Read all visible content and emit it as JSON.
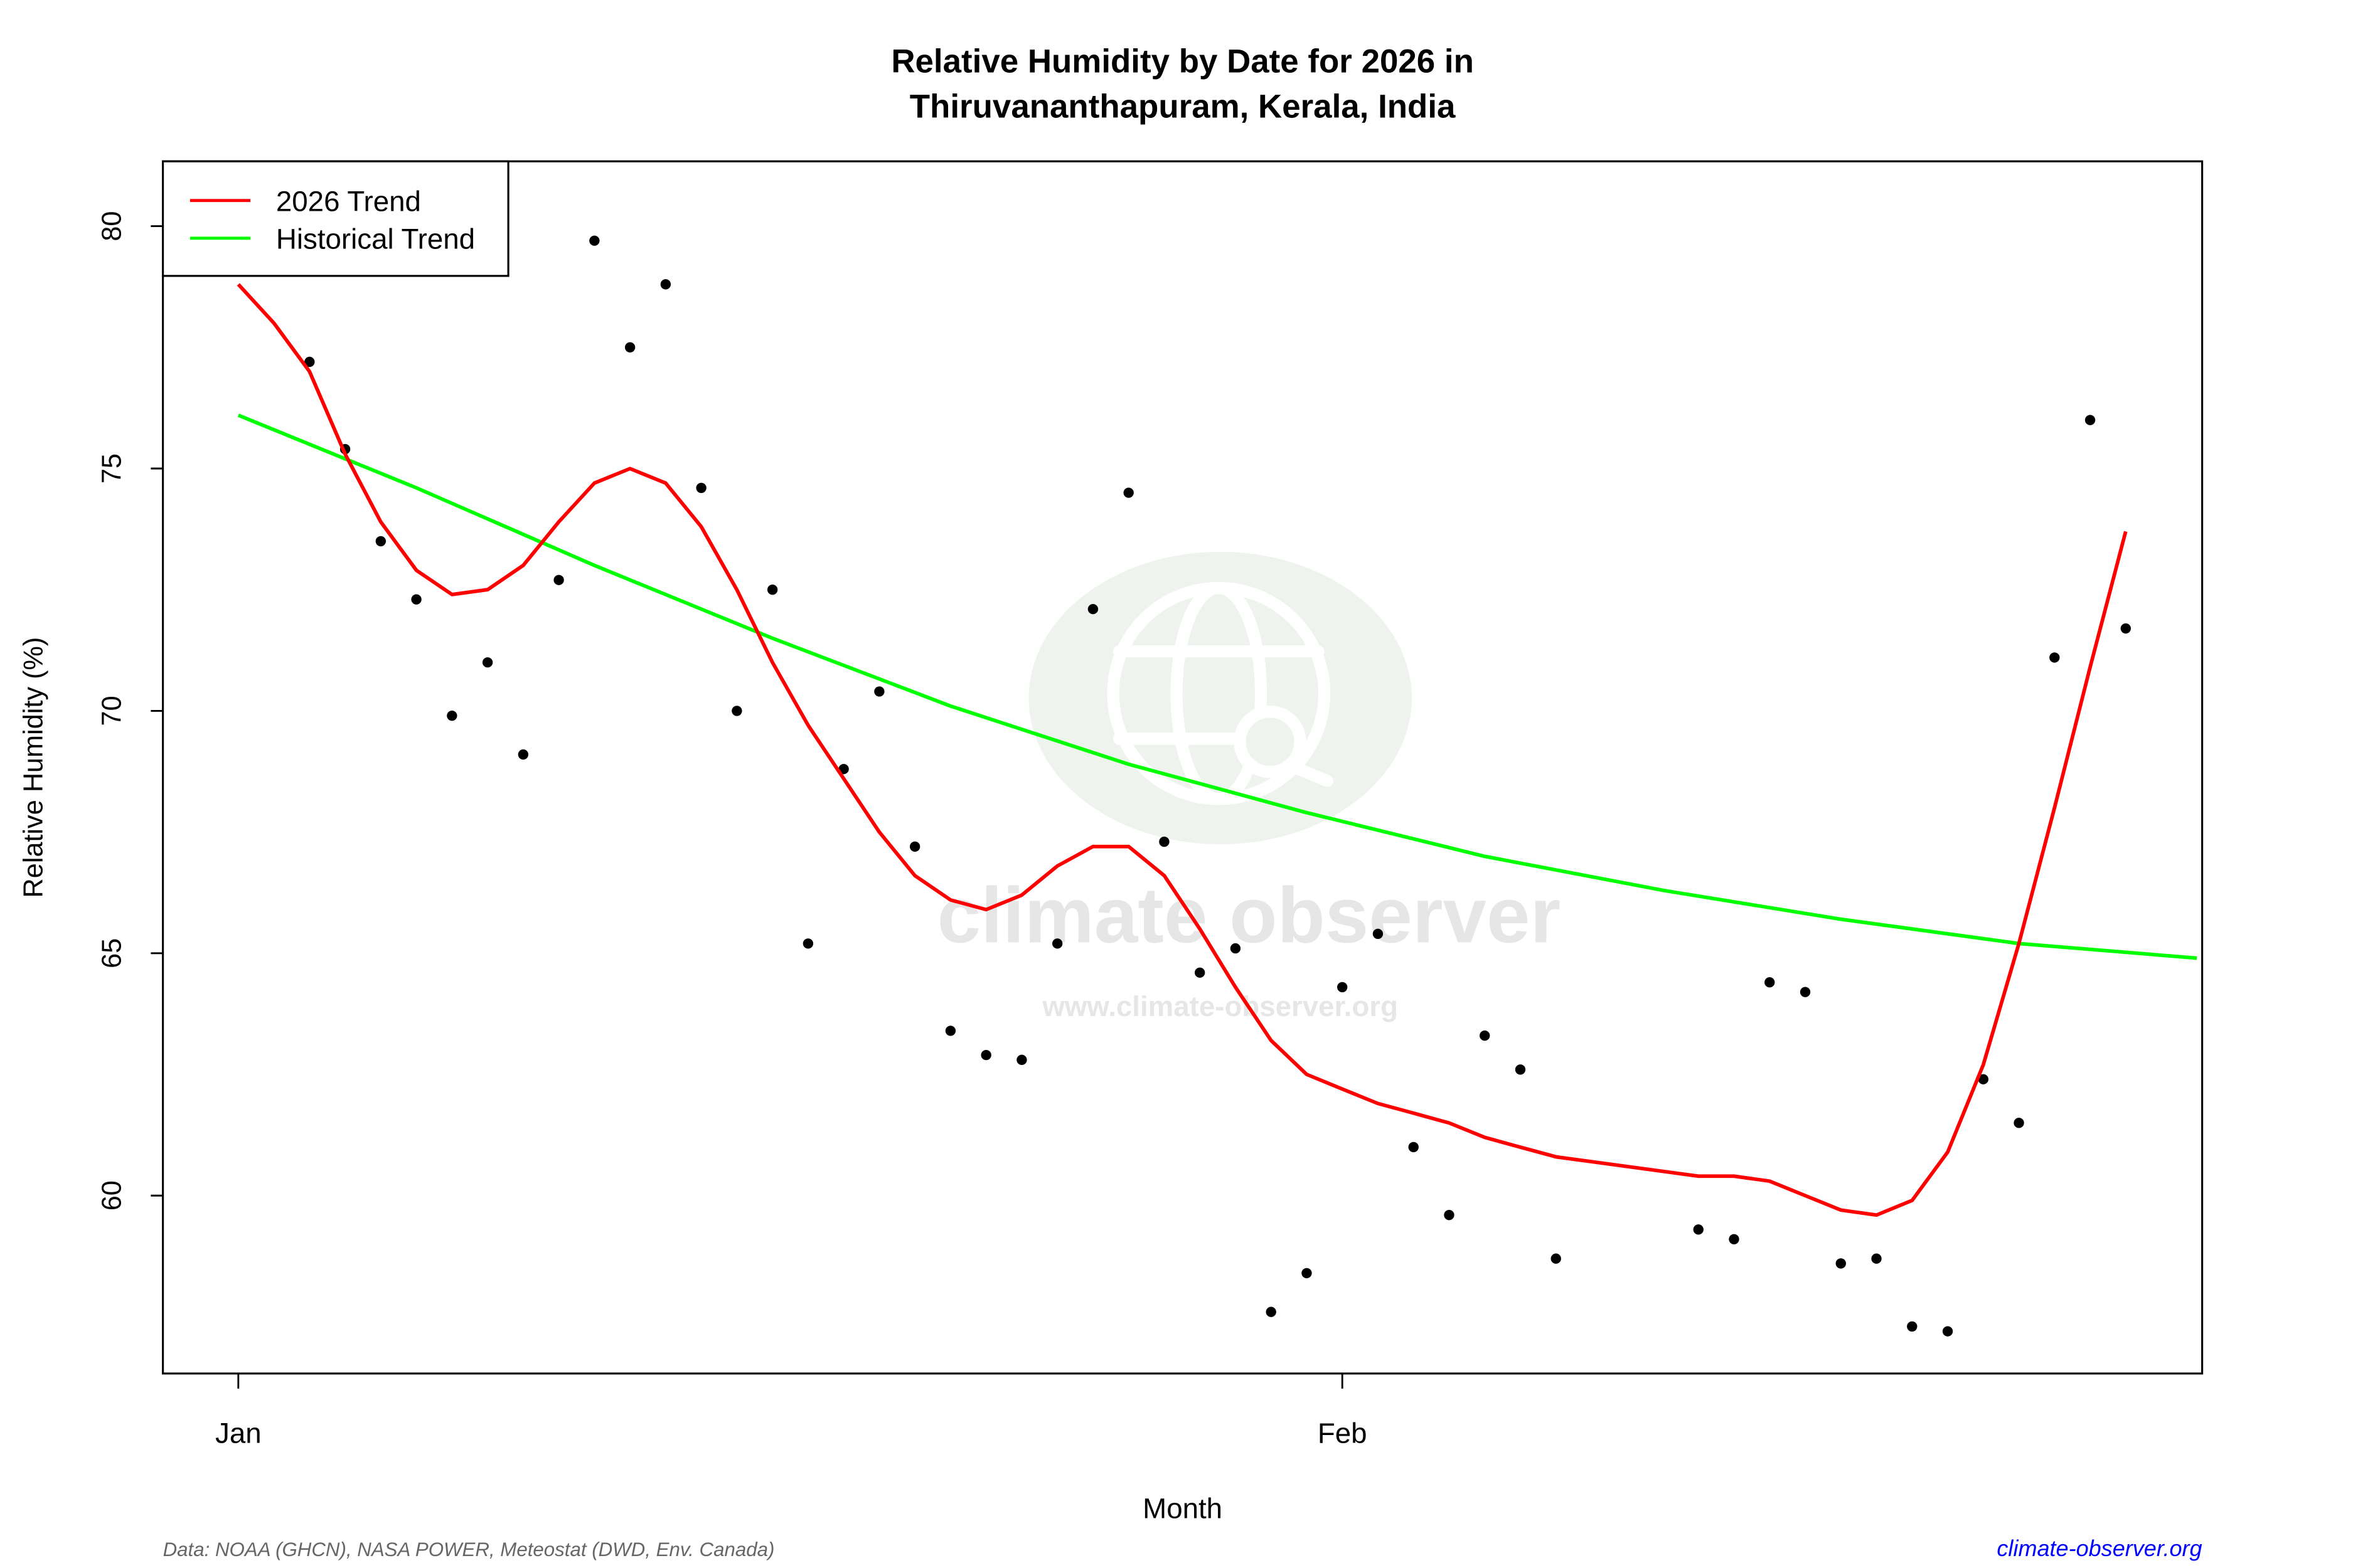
{
  "chart_data": {
    "type": "scatter",
    "title": "Relative Humidity by Date for 2026 in",
    "subtitle": "Thiruvananthapuram, Kerala, India",
    "xlabel": "Month",
    "ylabel": "Relative Humidity (%)",
    "x_ticks": [
      {
        "label": "Jan",
        "date": "2026-01-01"
      },
      {
        "label": "Feb",
        "date": "2026-02-01"
      }
    ],
    "y_ticks": [
      60,
      65,
      70,
      75,
      80
    ],
    "ylim": [
      56.3,
      81.3
    ],
    "xlim": [
      "2025-12-30",
      "2026-02-25"
    ],
    "grid": false,
    "legend_position": "top-left",
    "legend": [
      {
        "label": "2026 Trend",
        "color": "#ff0000"
      },
      {
        "label": "Historical Trend",
        "color": "#00ff00"
      }
    ],
    "points": [
      [
        "2026-01-03",
        77.2
      ],
      [
        "2026-01-04",
        75.4
      ],
      [
        "2026-01-05",
        73.5
      ],
      [
        "2026-01-06",
        72.3
      ],
      [
        "2026-01-07",
        69.9
      ],
      [
        "2026-01-08",
        71.0
      ],
      [
        "2026-01-09",
        69.1
      ],
      [
        "2026-01-10",
        72.7
      ],
      [
        "2026-01-11",
        79.7
      ],
      [
        "2026-01-12",
        77.5
      ],
      [
        "2026-01-13",
        78.8
      ],
      [
        "2026-01-14",
        74.6
      ],
      [
        "2026-01-15",
        70.0
      ],
      [
        "2026-01-16",
        72.5
      ],
      [
        "2026-01-17",
        65.2
      ],
      [
        "2026-01-18",
        68.8
      ],
      [
        "2026-01-19",
        70.4
      ],
      [
        "2026-01-20",
        67.2
      ],
      [
        "2026-01-21",
        63.4
      ],
      [
        "2026-01-22",
        62.9
      ],
      [
        "2026-01-23",
        62.8
      ],
      [
        "2026-01-24",
        65.2
      ],
      [
        "2026-01-25",
        72.1
      ],
      [
        "2026-01-26",
        74.5
      ],
      [
        "2026-01-27",
        67.3
      ],
      [
        "2026-01-28",
        64.6
      ],
      [
        "2026-01-29",
        65.1
      ],
      [
        "2026-01-30",
        57.6
      ],
      [
        "2026-01-31",
        58.4
      ],
      [
        "2026-02-01",
        64.3
      ],
      [
        "2026-02-02",
        65.4
      ],
      [
        "2026-02-03",
        61.0
      ],
      [
        "2026-02-04",
        59.6
      ],
      [
        "2026-02-05",
        63.3
      ],
      [
        "2026-02-06",
        62.6
      ],
      [
        "2026-02-07",
        58.7
      ],
      [
        "2026-02-11",
        59.3
      ],
      [
        "2026-02-12",
        59.1
      ],
      [
        "2026-02-13",
        64.4
      ],
      [
        "2026-02-14",
        64.2
      ],
      [
        "2026-02-15",
        58.6
      ],
      [
        "2026-02-16",
        58.7
      ],
      [
        "2026-02-17",
        57.3
      ],
      [
        "2026-02-18",
        57.2
      ],
      [
        "2026-02-19",
        62.4
      ],
      [
        "2026-02-20",
        61.5
      ],
      [
        "2026-02-21",
        71.1
      ],
      [
        "2026-02-22",
        76.0
      ],
      [
        "2026-02-23",
        71.7
      ]
    ],
    "trend_2026": [
      [
        "2026-01-01",
        78.8
      ],
      [
        "2026-01-02",
        78.0
      ],
      [
        "2026-01-03",
        77.0
      ],
      [
        "2026-01-04",
        75.3
      ],
      [
        "2026-01-05",
        73.9
      ],
      [
        "2026-01-06",
        72.9
      ],
      [
        "2026-01-07",
        72.4
      ],
      [
        "2026-01-08",
        72.5
      ],
      [
        "2026-01-09",
        73.0
      ],
      [
        "2026-01-10",
        73.9
      ],
      [
        "2026-01-11",
        74.7
      ],
      [
        "2026-01-12",
        75.0
      ],
      [
        "2026-01-13",
        74.7
      ],
      [
        "2026-01-14",
        73.8
      ],
      [
        "2026-01-15",
        72.5
      ],
      [
        "2026-01-16",
        71.0
      ],
      [
        "2026-01-17",
        69.7
      ],
      [
        "2026-01-18",
        68.6
      ],
      [
        "2026-01-19",
        67.5
      ],
      [
        "2026-01-20",
        66.6
      ],
      [
        "2026-01-21",
        66.1
      ],
      [
        "2026-01-22",
        65.9
      ],
      [
        "2026-01-23",
        66.2
      ],
      [
        "2026-01-24",
        66.8
      ],
      [
        "2026-01-25",
        67.2
      ],
      [
        "2026-01-26",
        67.2
      ],
      [
        "2026-01-27",
        66.6
      ],
      [
        "2026-01-28",
        65.5
      ],
      [
        "2026-01-29",
        64.3
      ],
      [
        "2026-01-30",
        63.2
      ],
      [
        "2026-01-31",
        62.5
      ],
      [
        "2026-02-01",
        62.2
      ],
      [
        "2026-02-02",
        61.9
      ],
      [
        "2026-02-03",
        61.7
      ],
      [
        "2026-02-04",
        61.5
      ],
      [
        "2026-02-05",
        61.2
      ],
      [
        "2026-02-06",
        61.0
      ],
      [
        "2026-02-07",
        60.8
      ],
      [
        "2026-02-11",
        60.4
      ],
      [
        "2026-02-12",
        60.4
      ],
      [
        "2026-02-13",
        60.3
      ],
      [
        "2026-02-14",
        60.0
      ],
      [
        "2026-02-15",
        59.7
      ],
      [
        "2026-02-16",
        59.6
      ],
      [
        "2026-02-17",
        59.9
      ],
      [
        "2026-02-18",
        60.9
      ],
      [
        "2026-02-19",
        62.7
      ],
      [
        "2026-02-20",
        65.2
      ],
      [
        "2026-02-21",
        68.0
      ],
      [
        "2026-02-22",
        70.9
      ],
      [
        "2026-02-23",
        73.7
      ]
    ],
    "trend_historical": [
      [
        "2026-01-01",
        76.1
      ],
      [
        "2026-01-06",
        74.6
      ],
      [
        "2026-01-11",
        73.0
      ],
      [
        "2026-01-16",
        71.5
      ],
      [
        "2026-01-21",
        70.1
      ],
      [
        "2026-01-26",
        68.9
      ],
      [
        "2026-01-31",
        67.9
      ],
      [
        "2026-02-05",
        67.0
      ],
      [
        "2026-02-10",
        66.3
      ],
      [
        "2026-02-15",
        65.7
      ],
      [
        "2026-02-20",
        65.2
      ],
      [
        "2026-02-25",
        64.9
      ]
    ]
  },
  "watermark": {
    "brand": "climate observer",
    "url": "www.climate-observer.org"
  },
  "footer": {
    "source": "Data: NOAA (GHCN), NASA POWER, Meteostat (DWD, Env. Canada)",
    "site": "climate-observer.org",
    "site_color": "#0000ff"
  }
}
